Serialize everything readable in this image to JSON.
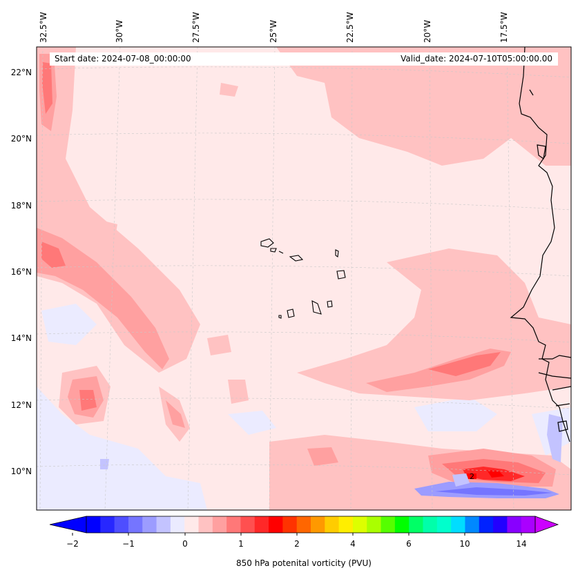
{
  "header": {
    "start_date": "Start date: 2024-07-08_00:00:00",
    "valid_date": "Valid_date: 2024-07-10T05:00:00.00"
  },
  "axes": {
    "longitude_labels": [
      "32.5°W",
      "30°W",
      "27.5°W",
      "25°W",
      "22.5°W",
      "20°W",
      "17.5°W"
    ],
    "latitude_labels": [
      "22°N",
      "20°N",
      "18°N",
      "16°N",
      "14°N",
      "12°N",
      "10°N"
    ],
    "gridlines": true,
    "gridline_style": "dashed"
  },
  "map": {
    "variable": "potential vorticity",
    "level": "850 hPa",
    "extent": {
      "lon_min": -33.0,
      "lon_max": -15.7,
      "lat_min": 8.9,
      "lat_max": 22.8
    },
    "contour_annotation": "2",
    "features": [
      "Cape Verde islands",
      "West African coastline"
    ]
  },
  "colorbar": {
    "title": "850 hPa potenital vorticity (PVU)",
    "tick_labels": [
      "−2",
      "−1",
      "0",
      "1",
      "2",
      "4",
      "6",
      "10",
      "14"
    ],
    "extend": "both",
    "colors": [
      "#0000ff",
      "#2727ff",
      "#4e4eff",
      "#7575ff",
      "#9c9cff",
      "#c3c3ff",
      "#ebebff",
      "#ffe9e9",
      "#ffc2c2",
      "#ffa0a0",
      "#ff7878",
      "#ff5050",
      "#ff2828",
      "#ff0000",
      "#ff3300",
      "#ff6600",
      "#ff9900",
      "#ffcc00",
      "#ffee00",
      "#ddff00",
      "#aaff00",
      "#55ff00",
      "#00ff00",
      "#00ff66",
      "#00ffaa",
      "#00ffcc",
      "#00ddff",
      "#0088ff",
      "#0022ff",
      "#2200ff",
      "#8800ff",
      "#aa00ff"
    ],
    "under_color": "#0000ff",
    "over_color": "#cc00ff"
  }
}
